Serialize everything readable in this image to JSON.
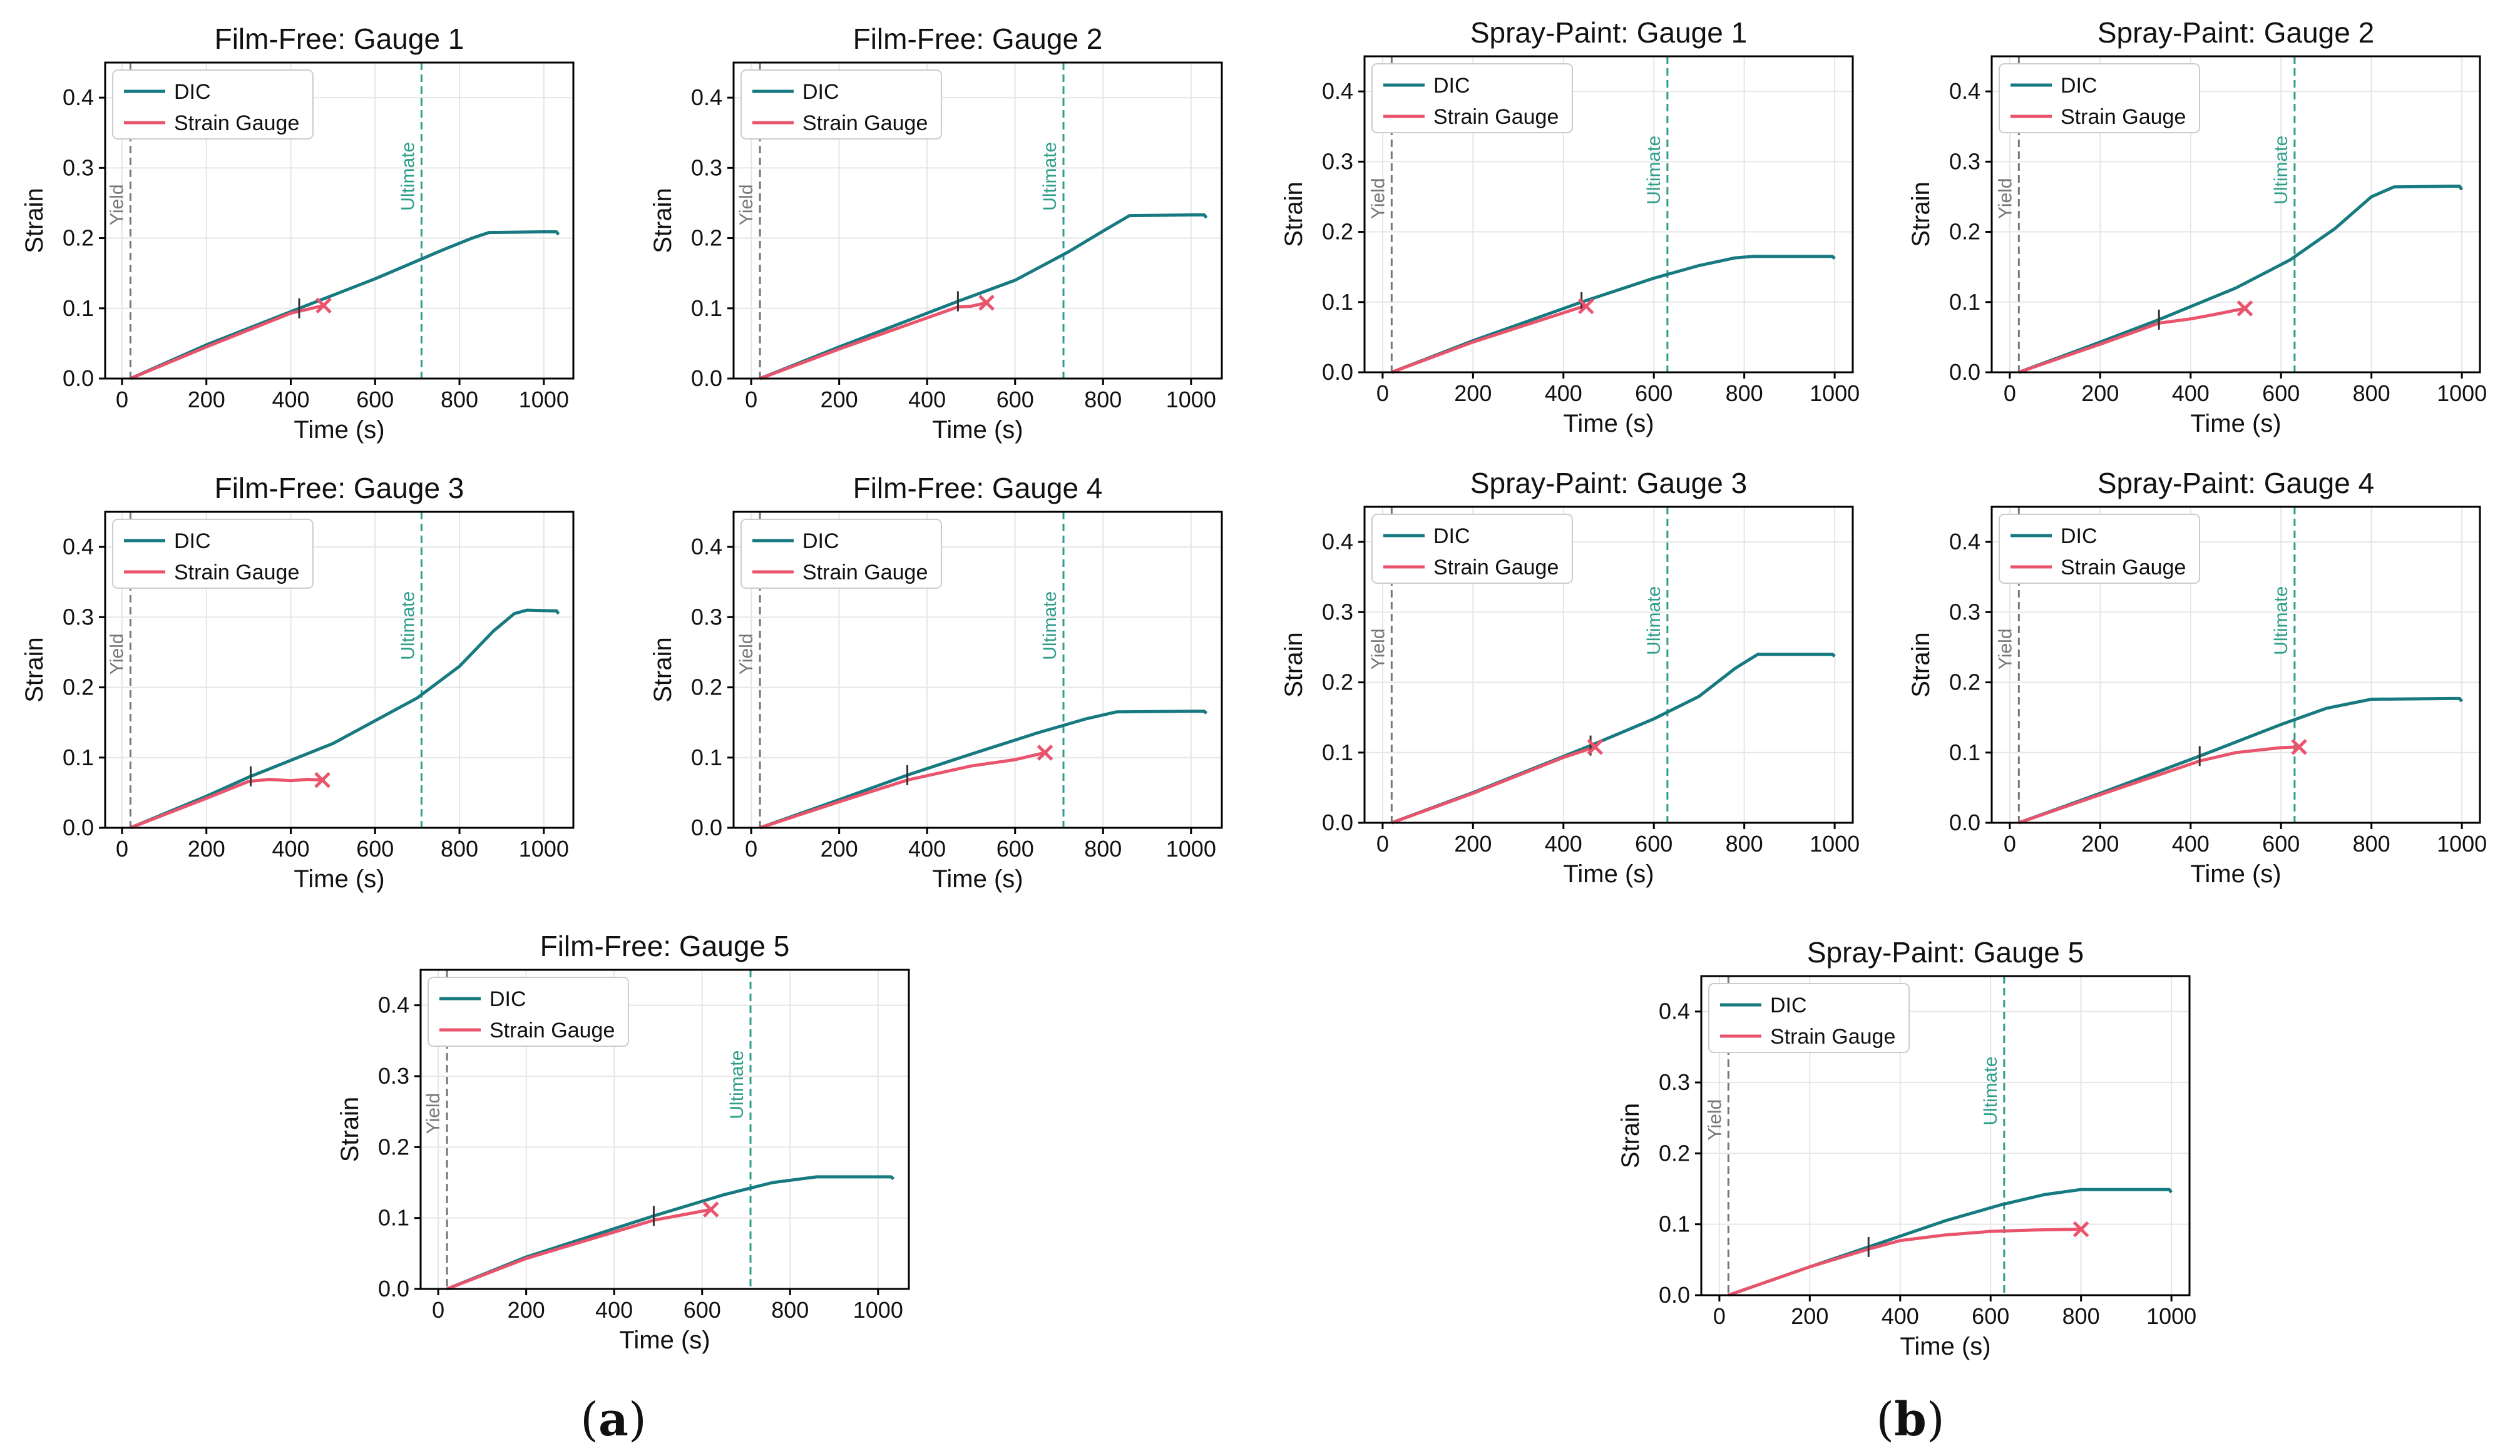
{
  "figure": {
    "colors": {
      "dic": "#167A80",
      "strain_gauge": "#E9546C",
      "yield": "#777777",
      "ultimate": "#2E9E8A",
      "axis": "#000000",
      "grid": "#e6e6e6",
      "legend_border": "#cccccc"
    },
    "captions": {
      "a_open": "(",
      "a_letter": "a",
      "a_close": ")",
      "b_open": "(",
      "b_letter": "b",
      "b_close": ")"
    }
  },
  "chart_data": [
    {
      "type": "line",
      "title": "Film-Free: Gauge 1",
      "xlabel": "Time (s)",
      "ylabel": "Strain",
      "xlim": [
        -40,
        1070
      ],
      "ylim": [
        0,
        0.45
      ],
      "xticks": [
        "0",
        "200",
        "400",
        "600",
        "800",
        "1000"
      ],
      "yticks": [
        "0.0",
        "0.1",
        "0.2",
        "0.3",
        "0.4"
      ],
      "grid": true,
      "legend": [
        "DIC",
        "Strain Gauge"
      ],
      "legend_position": "top-left",
      "yield_x": 20,
      "ultimate_x": 710,
      "yield_label": "Yield",
      "ultimate_label": "Ultimate",
      "series": [
        {
          "name": "DIC",
          "x": [
            20,
            200,
            420,
            600,
            760,
            830,
            870,
            1000,
            1030,
            1035
          ],
          "y": [
            0.0,
            0.048,
            0.1,
            0.142,
            0.183,
            0.2,
            0.208,
            0.209,
            0.209,
            0.205
          ]
        },
        {
          "name": "Strain Gauge",
          "x": [
            20,
            200,
            400,
            478
          ],
          "y": [
            0.0,
            0.045,
            0.093,
            0.104
          ]
        }
      ],
      "dic_tick_x": 420,
      "gauge_end_x": 478
    },
    {
      "type": "line",
      "title": "Film-Free: Gauge 2",
      "xlabel": "Time (s)",
      "ylabel": "Strain",
      "xlim": [
        -40,
        1070
      ],
      "ylim": [
        0,
        0.45
      ],
      "xticks": [
        "0",
        "200",
        "400",
        "600",
        "800",
        "1000"
      ],
      "yticks": [
        "0.0",
        "0.1",
        "0.2",
        "0.3",
        "0.4"
      ],
      "grid": true,
      "legend": [
        "DIC",
        "Strain Gauge"
      ],
      "legend_position": "top-left",
      "yield_x": 20,
      "ultimate_x": 710,
      "yield_label": "Yield",
      "ultimate_label": "Ultimate",
      "series": [
        {
          "name": "DIC",
          "x": [
            20,
            200,
            470,
            600,
            720,
            800,
            860,
            1000,
            1030,
            1035
          ],
          "y": [
            0.0,
            0.045,
            0.11,
            0.14,
            0.18,
            0.21,
            0.232,
            0.233,
            0.233,
            0.229
          ]
        },
        {
          "name": "Strain Gauge",
          "x": [
            20,
            200,
            470,
            500,
            535
          ],
          "y": [
            0.0,
            0.042,
            0.102,
            0.103,
            0.108
          ]
        }
      ],
      "dic_tick_x": 470,
      "gauge_end_x": 535
    },
    {
      "type": "line",
      "title": "Spray-Paint: Gauge 1",
      "xlabel": "Time (s)",
      "ylabel": "Strain",
      "xlim": [
        -40,
        1040
      ],
      "ylim": [
        0,
        0.45
      ],
      "xticks": [
        "0",
        "200",
        "400",
        "600",
        "800",
        "1000"
      ],
      "yticks": [
        "0.0",
        "0.1",
        "0.2",
        "0.3",
        "0.4"
      ],
      "grid": true,
      "legend": [
        "DIC",
        "Strain Gauge"
      ],
      "legend_position": "top-left",
      "yield_x": 20,
      "ultimate_x": 630,
      "yield_label": "Yield",
      "ultimate_label": "Ultimate",
      "series": [
        {
          "name": "DIC",
          "x": [
            20,
            200,
            440,
            600,
            700,
            780,
            820,
            980,
            995,
            1000
          ],
          "y": [
            0.0,
            0.045,
            0.1,
            0.134,
            0.152,
            0.163,
            0.165,
            0.165,
            0.165,
            0.162
          ]
        },
        {
          "name": "Strain Gauge",
          "x": [
            20,
            200,
            440,
            450
          ],
          "y": [
            0.0,
            0.043,
            0.093,
            0.094
          ]
        }
      ],
      "dic_tick_x": 440,
      "gauge_end_x": 450
    },
    {
      "type": "line",
      "title": "Spray-Paint: Gauge 2",
      "xlabel": "Time (s)",
      "ylabel": "Strain",
      "xlim": [
        -40,
        1040
      ],
      "ylim": [
        0,
        0.45
      ],
      "xticks": [
        "0",
        "200",
        "400",
        "600",
        "800",
        "1000"
      ],
      "yticks": [
        "0.0",
        "0.1",
        "0.2",
        "0.3",
        "0.4"
      ],
      "grid": true,
      "legend": [
        "DIC",
        "Strain Gauge"
      ],
      "legend_position": "top-left",
      "yield_x": 20,
      "ultimate_x": 630,
      "yield_label": "Yield",
      "ultimate_label": "Ultimate",
      "series": [
        {
          "name": "DIC",
          "x": [
            20,
            200,
            330,
            500,
            620,
            720,
            800,
            850,
            980,
            995,
            1000
          ],
          "y": [
            0.0,
            0.043,
            0.075,
            0.12,
            0.16,
            0.205,
            0.25,
            0.264,
            0.265,
            0.265,
            0.26
          ]
        },
        {
          "name": "Strain Gauge",
          "x": [
            20,
            200,
            330,
            400,
            450,
            520
          ],
          "y": [
            0.0,
            0.04,
            0.07,
            0.076,
            0.082,
            0.091
          ]
        }
      ],
      "dic_tick_x": 330,
      "gauge_end_x": 520
    },
    {
      "type": "line",
      "title": "Film-Free: Gauge 3",
      "xlabel": "Time (s)",
      "ylabel": "Strain",
      "xlim": [
        -40,
        1070
      ],
      "ylim": [
        0,
        0.45
      ],
      "xticks": [
        "0",
        "200",
        "400",
        "600",
        "800",
        "1000"
      ],
      "yticks": [
        "0.0",
        "0.1",
        "0.2",
        "0.3",
        "0.4"
      ],
      "grid": true,
      "legend": [
        "DIC",
        "Strain Gauge"
      ],
      "legend_position": "top-left",
      "yield_x": 20,
      "ultimate_x": 710,
      "yield_label": "Yield",
      "ultimate_label": "Ultimate",
      "series": [
        {
          "name": "DIC",
          "x": [
            20,
            200,
            300,
            500,
            700,
            800,
            880,
            930,
            960,
            1020,
            1030,
            1035
          ],
          "y": [
            0.0,
            0.045,
            0.072,
            0.12,
            0.185,
            0.23,
            0.28,
            0.305,
            0.31,
            0.309,
            0.309,
            0.305
          ]
        },
        {
          "name": "Strain Gauge",
          "x": [
            20,
            200,
            300,
            350,
            400,
            440,
            475
          ],
          "y": [
            0.0,
            0.042,
            0.066,
            0.069,
            0.067,
            0.069,
            0.068
          ]
        }
      ],
      "dic_tick_x": 305,
      "gauge_end_x": 475
    },
    {
      "type": "line",
      "title": "Film-Free: Gauge 4",
      "xlabel": "Time (s)",
      "ylabel": "Strain",
      "xlim": [
        -40,
        1070
      ],
      "ylim": [
        0,
        0.45
      ],
      "xticks": [
        "0",
        "200",
        "400",
        "600",
        "800",
        "1000"
      ],
      "yticks": [
        "0.0",
        "0.1",
        "0.2",
        "0.3",
        "0.4"
      ],
      "grid": true,
      "legend": [
        "DIC",
        "Strain Gauge"
      ],
      "legend_position": "top-left",
      "yield_x": 20,
      "ultimate_x": 710,
      "yield_label": "Yield",
      "ultimate_label": "Ultimate",
      "series": [
        {
          "name": "DIC",
          "x": [
            20,
            200,
            355,
            500,
            650,
            760,
            830,
            1000,
            1030,
            1035
          ],
          "y": [
            0.0,
            0.04,
            0.075,
            0.105,
            0.135,
            0.155,
            0.165,
            0.166,
            0.166,
            0.163
          ]
        },
        {
          "name": "Strain Gauge",
          "x": [
            20,
            200,
            355,
            500,
            600,
            668
          ],
          "y": [
            0.0,
            0.037,
            0.068,
            0.088,
            0.097,
            0.107
          ]
        }
      ],
      "dic_tick_x": 355,
      "gauge_end_x": 668
    },
    {
      "type": "line",
      "title": "Spray-Paint: Gauge 3",
      "xlabel": "Time (s)",
      "ylabel": "Strain",
      "xlim": [
        -40,
        1040
      ],
      "ylim": [
        0,
        0.45
      ],
      "xticks": [
        "0",
        "200",
        "400",
        "600",
        "800",
        "1000"
      ],
      "yticks": [
        "0.0",
        "0.1",
        "0.2",
        "0.3",
        "0.4"
      ],
      "grid": true,
      "legend": [
        "DIC",
        "Strain Gauge"
      ],
      "legend_position": "top-left",
      "yield_x": 20,
      "ultimate_x": 630,
      "yield_label": "Yield",
      "ultimate_label": "Ultimate",
      "series": [
        {
          "name": "DIC",
          "x": [
            20,
            200,
            460,
            600,
            700,
            780,
            830,
            980,
            995,
            1000
          ],
          "y": [
            0.0,
            0.043,
            0.11,
            0.148,
            0.18,
            0.22,
            0.24,
            0.24,
            0.24,
            0.237
          ]
        },
        {
          "name": "Strain Gauge",
          "x": [
            20,
            200,
            400,
            470
          ],
          "y": [
            0.0,
            0.042,
            0.093,
            0.108
          ]
        }
      ],
      "dic_tick_x": 460,
      "gauge_end_x": 470
    },
    {
      "type": "line",
      "title": "Spray-Paint: Gauge 4",
      "xlabel": "Time (s)",
      "ylabel": "Strain",
      "xlim": [
        -40,
        1040
      ],
      "ylim": [
        0,
        0.45
      ],
      "xticks": [
        "0",
        "200",
        "400",
        "600",
        "800",
        "1000"
      ],
      "yticks": [
        "0.0",
        "0.1",
        "0.2",
        "0.3",
        "0.4"
      ],
      "grid": true,
      "legend": [
        "DIC",
        "Strain Gauge"
      ],
      "legend_position": "top-left",
      "yield_x": 20,
      "ultimate_x": 630,
      "yield_label": "Yield",
      "ultimate_label": "Ultimate",
      "series": [
        {
          "name": "DIC",
          "x": [
            20,
            200,
            420,
            600,
            700,
            800,
            980,
            995,
            1000
          ],
          "y": [
            0.0,
            0.042,
            0.095,
            0.14,
            0.163,
            0.176,
            0.177,
            0.177,
            0.173
          ]
        },
        {
          "name": "Strain Gauge",
          "x": [
            20,
            200,
            420,
            500,
            600,
            640
          ],
          "y": [
            0.0,
            0.04,
            0.088,
            0.1,
            0.107,
            0.108
          ]
        }
      ],
      "dic_tick_x": 420,
      "gauge_end_x": 640
    },
    {
      "type": "line",
      "title": "Film-Free: Gauge 5",
      "xlabel": "Time (s)",
      "ylabel": "Strain",
      "xlim": [
        -40,
        1070
      ],
      "ylim": [
        0,
        0.45
      ],
      "xticks": [
        "0",
        "200",
        "400",
        "600",
        "800",
        "1000"
      ],
      "yticks": [
        "0.0",
        "0.1",
        "0.2",
        "0.3",
        "0.4"
      ],
      "grid": true,
      "legend": [
        "DIC",
        "Strain Gauge"
      ],
      "legend_position": "top-left",
      "yield_x": 20,
      "ultimate_x": 710,
      "yield_label": "Yield",
      "ultimate_label": "Ultimate",
      "series": [
        {
          "name": "DIC",
          "x": [
            20,
            200,
            490,
            650,
            760,
            860,
            1000,
            1030,
            1035
          ],
          "y": [
            0.0,
            0.045,
            0.103,
            0.133,
            0.15,
            0.158,
            0.158,
            0.158,
            0.155
          ]
        },
        {
          "name": "Strain Gauge",
          "x": [
            20,
            200,
            490,
            560,
            620
          ],
          "y": [
            0.0,
            0.043,
            0.097,
            0.105,
            0.112
          ]
        }
      ],
      "dic_tick_x": 490,
      "gauge_end_x": 620
    },
    {
      "type": "line",
      "title": "Spray-Paint: Gauge 5",
      "xlabel": "Time (s)",
      "ylabel": "Strain",
      "xlim": [
        -40,
        1040
      ],
      "ylim": [
        0,
        0.45
      ],
      "xticks": [
        "0",
        "200",
        "400",
        "600",
        "800",
        "1000"
      ],
      "yticks": [
        "0.0",
        "0.1",
        "0.2",
        "0.3",
        "0.4"
      ],
      "grid": true,
      "legend": [
        "DIC",
        "Strain Gauge"
      ],
      "legend_position": "top-left",
      "yield_x": 20,
      "ultimate_x": 630,
      "yield_label": "Yield",
      "ultimate_label": "Ultimate",
      "series": [
        {
          "name": "DIC",
          "x": [
            20,
            200,
            330,
            500,
            620,
            720,
            800,
            980,
            995,
            1000
          ],
          "y": [
            0.0,
            0.04,
            0.068,
            0.105,
            0.127,
            0.142,
            0.149,
            0.149,
            0.149,
            0.145
          ]
        },
        {
          "name": "Strain Gauge",
          "x": [
            20,
            200,
            330,
            400,
            500,
            600,
            700,
            800
          ],
          "y": [
            0.0,
            0.04,
            0.065,
            0.077,
            0.085,
            0.09,
            0.092,
            0.093
          ]
        }
      ],
      "dic_tick_x": 330,
      "gauge_end_x": 800
    }
  ]
}
